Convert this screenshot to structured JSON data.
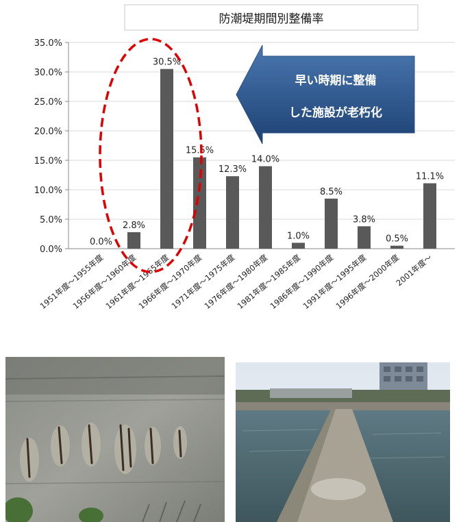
{
  "chart_data": {
    "type": "bar",
    "title": "防潮堤期間別整備率",
    "categories": [
      "1951年度～1955年度",
      "1956年度～1960年度",
      "1961年度～1965年度",
      "1966年度～1970年度",
      "1971年度～1975年度",
      "1976年度～1980年度",
      "1981年度～1985年度",
      "1986年度～1990年度",
      "1991年度～1995年度",
      "1996年度～2000年度",
      "2001年度～"
    ],
    "values": [
      0.0,
      2.8,
      30.5,
      15.5,
      12.3,
      14.0,
      1.0,
      8.5,
      3.8,
      0.5,
      11.1
    ],
    "data_labels": [
      "0.0%",
      "2.8%",
      "30.5%",
      "15.5%",
      "12.3%",
      "14.0%",
      "1.0%",
      "8.5%",
      "3.8%",
      "0.5%",
      "11.1%"
    ],
    "y_ticks": [
      "0.0%",
      "5.0%",
      "10.0%",
      "15.0%",
      "20.0%",
      "25.0%",
      "30.0%",
      "35.0%"
    ],
    "ylim": [
      0,
      35
    ],
    "xlabel": "",
    "ylabel": "",
    "grid": true,
    "bar_color": "#595959"
  },
  "callout": {
    "line1": "早い時期に整備",
    "line2": "した施設が老朽化",
    "fill_top": "#4a78b0",
    "fill_bottom": "#1d4173"
  },
  "highlight": {
    "color": "#e00000"
  },
  "photos": {
    "left": {
      "subject": "deteriorated concrete wall with exposed rebar"
    },
    "right": {
      "subject": "seawall crest extending into water"
    }
  }
}
